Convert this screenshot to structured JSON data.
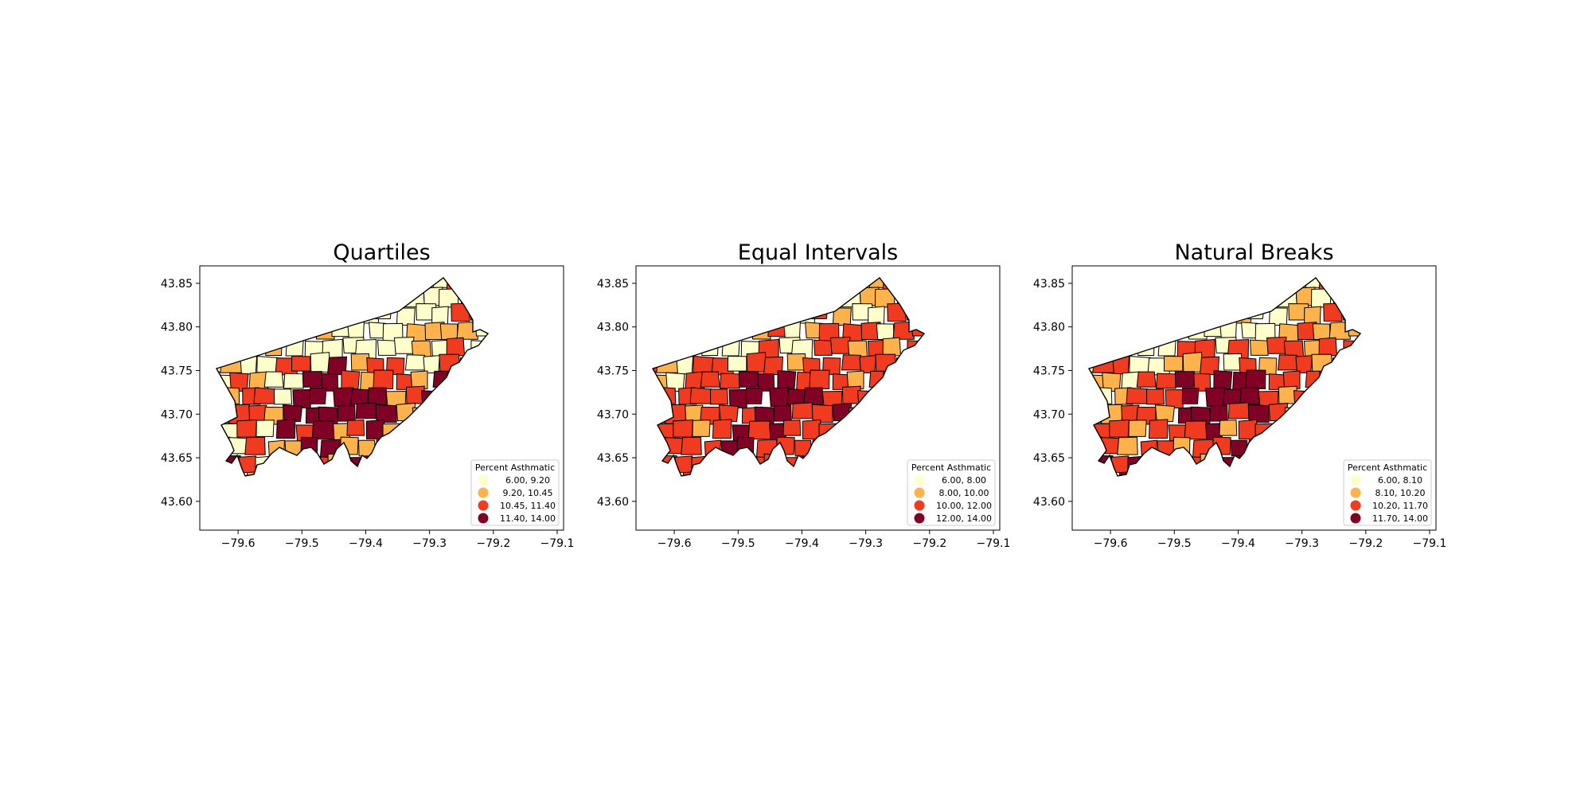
{
  "figure": {
    "panels": [
      {
        "title": "Quartiles",
        "legend_title": "Percent Asthmatic",
        "classes": [
          "6.00,  9.20",
          "9.20, 10.45",
          "10.45, 11.40",
          "11.40, 14.00"
        ],
        "palette": [
          "#ffffcc",
          "#feb24c",
          "#f03b20",
          "#800026"
        ]
      },
      {
        "title": "Equal Intervals",
        "legend_title": "Percent Asthmatic",
        "classes": [
          "6.00,  8.00",
          "8.00, 10.00",
          "10.00, 12.00",
          "12.00, 14.00"
        ],
        "palette": [
          "#ffffcc",
          "#feb24c",
          "#f03b20",
          "#800026"
        ]
      },
      {
        "title": "Natural Breaks",
        "legend_title": "Percent Asthmatic",
        "classes": [
          "6.00,  8.10",
          "8.10, 10.20",
          "10.20, 11.70",
          "11.70, 14.00"
        ],
        "palette": [
          "#ffffcc",
          "#feb24c",
          "#f03b20",
          "#800026"
        ]
      }
    ],
    "x_ticks": [
      "−79.6",
      "−79.5",
      "−79.4",
      "−79.3",
      "−79.2",
      "−79.1"
    ],
    "y_ticks": [
      "43.85",
      "43.80",
      "43.75",
      "43.70",
      "43.65",
      "43.60"
    ],
    "xlim": [
      -79.66,
      -79.09
    ],
    "ylim": [
      43.567,
      43.87
    ],
    "x_tick_values": [
      -79.6,
      -79.5,
      -79.4,
      -79.3,
      -79.2,
      -79.1
    ],
    "y_tick_values": [
      43.85,
      43.8,
      43.75,
      43.7,
      43.65,
      43.6
    ]
  }
}
